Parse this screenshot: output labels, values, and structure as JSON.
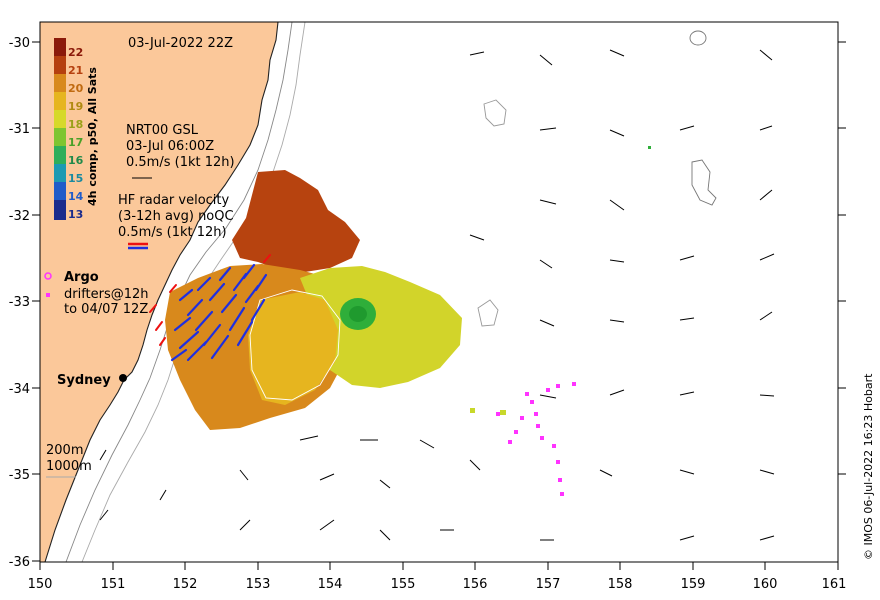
{
  "title": "03-Jul-2022 22Z",
  "colorbar": {
    "label": "4h comp, p50, All Sats",
    "ticks": [
      "22",
      "21",
      "20",
      "19",
      "18",
      "17",
      "16",
      "15",
      "14",
      "13"
    ],
    "colors": [
      "#8b1a0a",
      "#b5400f",
      "#d8891c",
      "#e6b51f",
      "#d6d92a",
      "#7ec531",
      "#2fae5a",
      "#1d9ab2",
      "#1f5cc9",
      "#1a2b8c"
    ]
  },
  "gsl": {
    "line1": "NRT00 GSL",
    "line2": "03-Jul 06:00Z",
    "scale": "0.5m/s (1kt 12h)"
  },
  "hf_radar": {
    "line1": "HF radar velocity",
    "line2": "(3-12h avg) noQC",
    "scale": "0.5m/s (1kt 12h)"
  },
  "argo": {
    "label": "Argo"
  },
  "drifters": {
    "line1": "drifters@12h",
    "line2": "to 04/07 12Z"
  },
  "city": {
    "label": "Sydney"
  },
  "isobaths": {
    "shallow": "200m",
    "deep": "1000m"
  },
  "credit": "© IMOS 06-Jul-2022 16:23 Hobart",
  "x_ticks": [
    "150",
    "151",
    "152",
    "153",
    "154",
    "155",
    "156",
    "157",
    "158",
    "159",
    "160",
    "161"
  ],
  "y_ticks": [
    "-30",
    "-31",
    "-32",
    "-33",
    "-34",
    "-35",
    "-36"
  ],
  "colors": {
    "land": "#fbc89a",
    "drifter": "#ff33ff",
    "hf_blue": "#1f2fe0",
    "hf_red": "#ee1111"
  }
}
